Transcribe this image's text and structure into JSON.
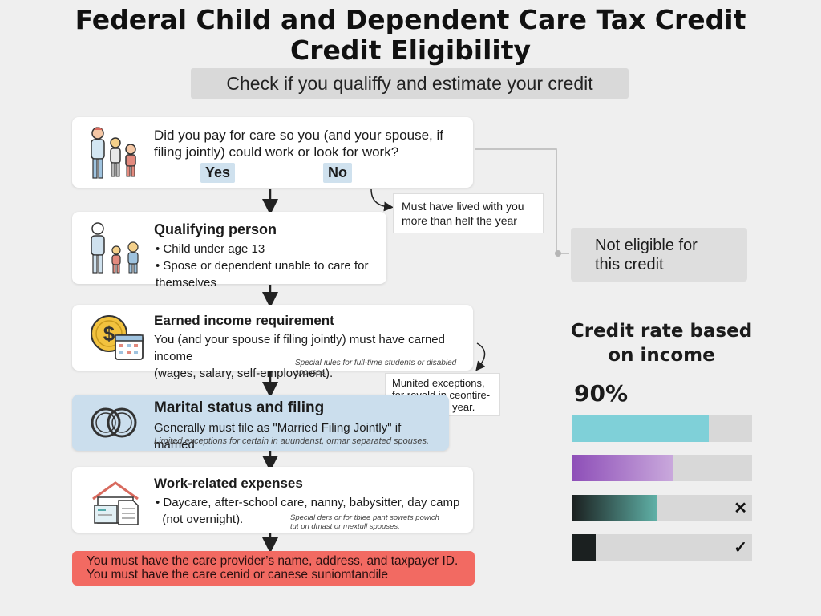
{
  "title_line1": "Federal Child and Dependent Care Tax Credit",
  "title_line2": "Credit Eligibility",
  "subtitle": "Check if you qualiffy and estimate your credit",
  "step1": {
    "question_line1": "Did you pay for care so you (and your spouse, if",
    "question_line2": "filing jointly) could work or look for work?",
    "yes": "Yes",
    "no": "No"
  },
  "note1_line1": "Must have lived with you",
  "note1_line2": "more than helf the year",
  "step2": {
    "title": "Qualifying person",
    "bullet1": "Child under age 13",
    "bullet2": "Spose or dependent unable to care for themselves"
  },
  "step3": {
    "title": "Earned income requirement",
    "line1": "You (and your spouse if filing jointly) must have carned income",
    "line2": "(wages, salary, self-employment).",
    "small": "Special ıules for full-time students or disabled spouses."
  },
  "note2_line1": "Munited exceptions,",
  "note2_line2": "for rovold in ceontire-",
  "note2_line3": "fave stor the year.",
  "step4": {
    "title": "Marital status and filing",
    "line1": "Generally must file as \"Married Filing Jointly\"  if married",
    "small": "Limited exceptions for certain in auundenst, ormar separated spouses."
  },
  "step5": {
    "title": "Work-related expenses",
    "line1": "Daycare, after-school care, nanny, babysitter, day camp",
    "line2": "(not overnight).",
    "small_line1": "Special ders or for tblee pant sowets powich",
    "small_line2": "tut on dmast or mextull spouses."
  },
  "not_eligible_line1": "Not eligible for",
  "not_eligible_line2": "this credit",
  "rate_title_line1": "Credit rate based",
  "rate_title_line2": "on income",
  "rate_percent": "90%",
  "rate_bars": [
    {
      "level": 0.76,
      "color": "#7fd0d8",
      "mark": ""
    },
    {
      "level": 0.56,
      "color": "gradient-purple",
      "mark": ""
    },
    {
      "level": 0.47,
      "color": "gradient-dark",
      "mark": "✕"
    },
    {
      "level": 0.13,
      "color": "#1b2020",
      "mark": "✓"
    }
  ],
  "warning_line1": "You must have the care provider’s name, address, and taxpayer ID.",
  "warning_line2": "You must have the care cenid or canese suniomtandile",
  "icons": [
    "family-icon",
    "parent-children-icon",
    "dollar-calendar-icon",
    "wedding-rings-icon",
    "house-documents-icon"
  ]
}
